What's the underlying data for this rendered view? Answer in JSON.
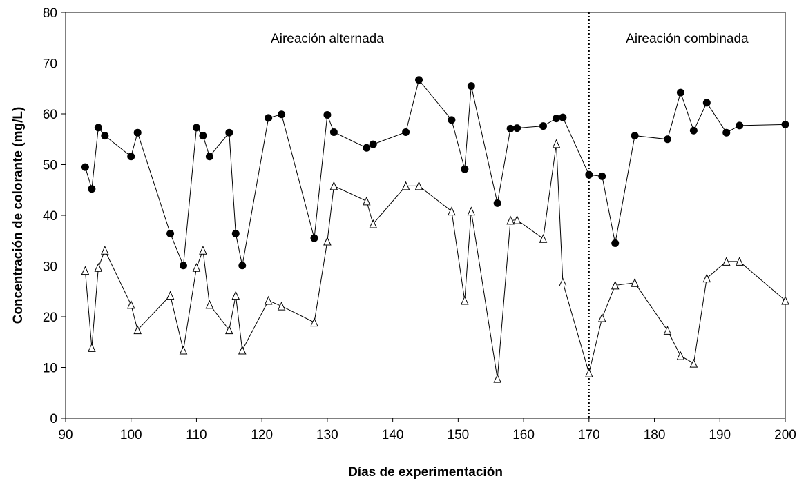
{
  "chart_data": {
    "type": "line",
    "title": "",
    "xlabel": "Días de experimentación",
    "ylabel": "Concentración de colorante (mg/L)",
    "xlim": [
      90,
      200
    ],
    "ylim": [
      0,
      80
    ],
    "x_ticks": [
      90,
      100,
      110,
      120,
      130,
      140,
      150,
      160,
      170,
      180,
      190,
      200
    ],
    "y_ticks": [
      0,
      10,
      20,
      30,
      40,
      50,
      60,
      70,
      80
    ],
    "grid": false,
    "legend": "none",
    "vertical_line": {
      "x": 170,
      "style": "dotted"
    },
    "annotations": [
      {
        "text": "Aireación alternada",
        "x": 130,
        "y": 75
      },
      {
        "text": "Aireación combinada",
        "x": 185,
        "y": 75
      }
    ],
    "series": [
      {
        "marker": "filled-circle",
        "color": "#000000",
        "points": [
          [
            93,
            49.5
          ],
          [
            94,
            45.2
          ],
          [
            95,
            57.3
          ],
          [
            96,
            55.7
          ],
          [
            100,
            51.6
          ],
          [
            101,
            56.3
          ],
          [
            106,
            36.4
          ],
          [
            108,
            30.1
          ],
          [
            110,
            57.3
          ],
          [
            111,
            55.7
          ],
          [
            112,
            51.6
          ],
          [
            115,
            56.3
          ],
          [
            116,
            36.4
          ],
          [
            117,
            30.1
          ],
          [
            121,
            59.2
          ],
          [
            123,
            59.9
          ],
          [
            128,
            35.5
          ],
          [
            130,
            59.8
          ],
          [
            131,
            56.4
          ],
          [
            136,
            53.3
          ],
          [
            137,
            54.0
          ],
          [
            142,
            56.4
          ],
          [
            144,
            66.7
          ],
          [
            149,
            58.8
          ],
          [
            151,
            49.1
          ],
          [
            152,
            65.5
          ],
          [
            156,
            42.4
          ],
          [
            158,
            57.1
          ],
          [
            159,
            57.2
          ],
          [
            163,
            57.6
          ],
          [
            165,
            59.1
          ],
          [
            166,
            59.3
          ],
          [
            170,
            48.0
          ],
          [
            172,
            47.7
          ],
          [
            174,
            34.5
          ],
          [
            177,
            55.7
          ],
          [
            182,
            55.0
          ],
          [
            184,
            64.2
          ],
          [
            186,
            56.7
          ],
          [
            188,
            62.2
          ],
          [
            191,
            56.3
          ],
          [
            193,
            57.7
          ],
          [
            200,
            57.9
          ]
        ]
      },
      {
        "marker": "open-triangle",
        "color": "#000000",
        "points": [
          [
            93,
            29.1
          ],
          [
            94,
            13.9
          ],
          [
            95,
            29.7
          ],
          [
            96,
            33.1
          ],
          [
            100,
            22.4
          ],
          [
            101,
            17.4
          ],
          [
            106,
            24.2
          ],
          [
            108,
            13.4
          ],
          [
            110,
            29.7
          ],
          [
            111,
            33.1
          ],
          [
            112,
            22.4
          ],
          [
            115,
            17.4
          ],
          [
            116,
            24.2
          ],
          [
            117,
            13.4
          ],
          [
            121,
            23.2
          ],
          [
            123,
            22.1
          ],
          [
            128,
            18.9
          ],
          [
            130,
            34.9
          ],
          [
            131,
            45.8
          ],
          [
            136,
            42.8
          ],
          [
            137,
            38.3
          ],
          [
            142,
            45.8
          ],
          [
            144,
            45.8
          ],
          [
            149,
            40.8
          ],
          [
            151,
            23.2
          ],
          [
            152,
            40.8
          ],
          [
            156,
            7.8
          ],
          [
            158,
            39.0
          ],
          [
            159,
            39.1
          ],
          [
            163,
            35.4
          ],
          [
            165,
            54.1
          ],
          [
            166,
            26.8
          ],
          [
            170,
            8.9
          ],
          [
            172,
            19.8
          ],
          [
            174,
            26.2
          ],
          [
            177,
            26.7
          ],
          [
            182,
            17.3
          ],
          [
            184,
            12.3
          ],
          [
            186,
            10.8
          ],
          [
            188,
            27.6
          ],
          [
            191,
            30.9
          ],
          [
            193,
            30.9
          ],
          [
            200,
            23.2
          ]
        ]
      }
    ]
  }
}
